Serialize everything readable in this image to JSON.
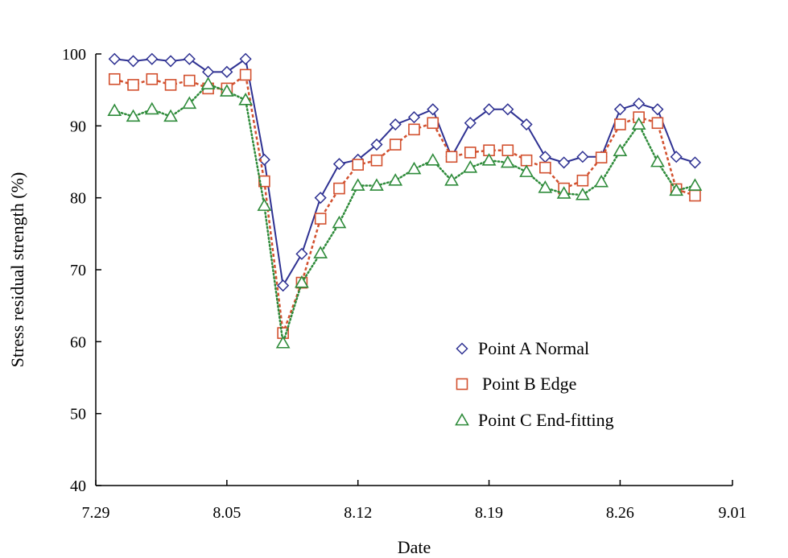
{
  "chart_data": {
    "type": "line",
    "xlabel": "Date",
    "ylabel": "Stress residual strength (%)",
    "ylim": [
      40,
      100
    ],
    "yticks": [
      40,
      50,
      60,
      70,
      80,
      90,
      100
    ],
    "xlim": [
      "2020-07-29",
      "2020-09-01"
    ],
    "xticks": [
      {
        "date": "2020-07-29",
        "label": "7.29"
      },
      {
        "date": "2020-08-05",
        "label": "8.05"
      },
      {
        "date": "2020-08-12",
        "label": "8.12"
      },
      {
        "date": "2020-08-19",
        "label": "8.19"
      },
      {
        "date": "2020-08-26",
        "label": "8.26"
      },
      {
        "date": "2020-09-01",
        "label": "9.01"
      }
    ],
    "grid": false,
    "legend_position": "lower-right",
    "x": [
      "2020-07-30",
      "2020-07-31",
      "2020-08-01",
      "2020-08-02",
      "2020-08-03",
      "2020-08-04",
      "2020-08-05",
      "2020-08-06",
      "2020-08-07",
      "2020-08-08",
      "2020-08-09",
      "2020-08-10",
      "2020-08-11",
      "2020-08-12",
      "2020-08-13",
      "2020-08-14",
      "2020-08-15",
      "2020-08-16",
      "2020-08-17",
      "2020-08-18",
      "2020-08-19",
      "2020-08-20",
      "2020-08-21",
      "2020-08-22",
      "2020-08-23",
      "2020-08-24",
      "2020-08-25",
      "2020-08-26",
      "2020-08-27",
      "2020-08-28",
      "2020-08-29",
      "2020-08-30"
    ],
    "series": [
      {
        "name": "Point A Normal",
        "color": "#2e3192",
        "marker": "diamond",
        "line": "solid",
        "values": [
          99.3,
          99.0,
          99.3,
          99.0,
          99.3,
          97.5,
          97.5,
          99.3,
          85.3,
          67.8,
          72.2,
          80.0,
          84.7,
          85.3,
          87.4,
          90.2,
          91.2,
          92.3,
          85.7,
          90.4,
          92.3,
          92.3,
          90.2,
          85.7,
          84.9,
          85.7,
          85.7,
          92.3,
          93.1,
          92.3,
          85.7,
          84.9
        ]
      },
      {
        "name": "Point B Edge",
        "color": "#d2502e",
        "marker": "square",
        "line": "dashed",
        "values": [
          96.5,
          95.7,
          96.5,
          95.7,
          96.3,
          95.2,
          95.2,
          97.1,
          82.3,
          61.2,
          68.2,
          77.1,
          81.3,
          84.6,
          85.2,
          87.4,
          89.5,
          90.4,
          85.7,
          86.3,
          86.6,
          86.6,
          85.2,
          84.2,
          81.3,
          82.4,
          85.6,
          90.2,
          91.2,
          90.4,
          81.2,
          80.3
        ]
      },
      {
        "name": "Point C End-fitting",
        "color": "#2e8b3a",
        "marker": "triangle",
        "line": "dotted",
        "values": [
          92.1,
          91.3,
          92.3,
          91.3,
          93.1,
          95.8,
          94.8,
          93.6,
          78.9,
          59.8,
          68.2,
          72.3,
          76.5,
          81.7,
          81.7,
          82.4,
          84.0,
          85.2,
          82.4,
          84.2,
          85.2,
          84.9,
          83.6,
          81.4,
          80.6,
          80.4,
          82.2,
          86.5,
          90.2,
          85.0,
          81.0,
          81.7
        ]
      }
    ]
  }
}
